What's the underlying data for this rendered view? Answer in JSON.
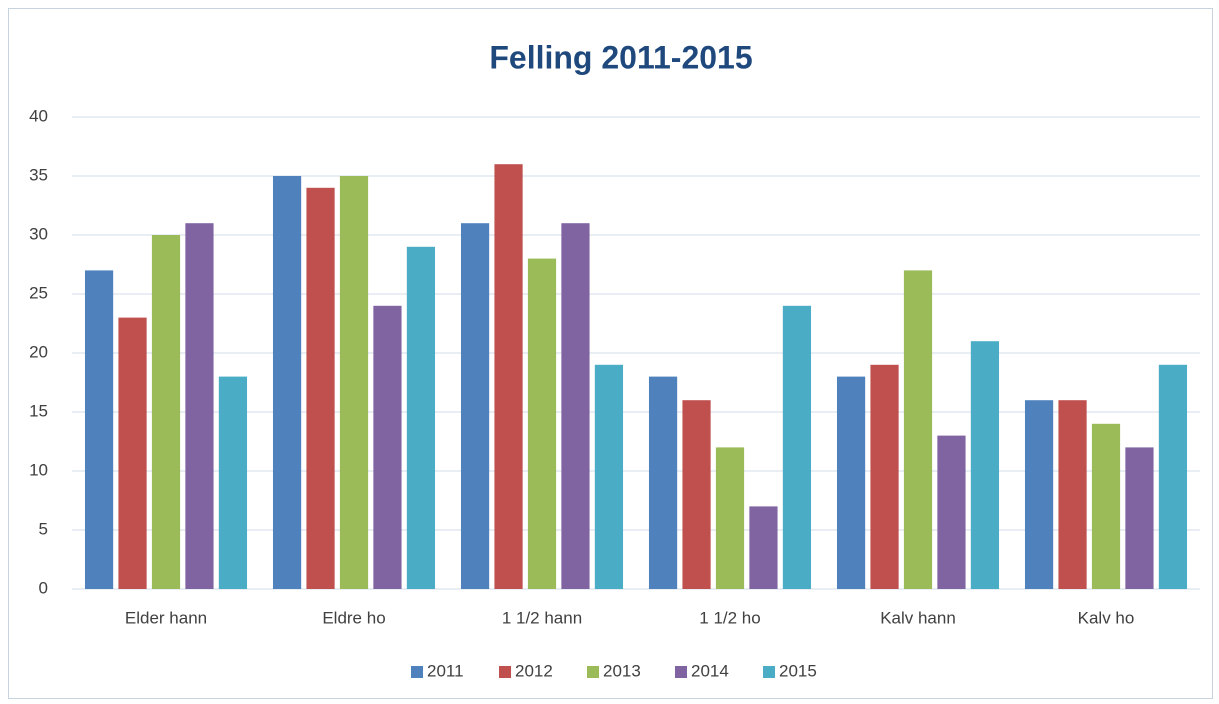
{
  "chart_data": {
    "type": "bar",
    "title": "Felling 2011-2015",
    "categories": [
      "Elder hann",
      "Eldre ho",
      "1 1/2 hann",
      "1 1/2 ho",
      "Kalv hann",
      "Kalv ho"
    ],
    "series": [
      {
        "name": "2011",
        "color": "#4f81bd",
        "values": [
          27,
          35,
          31,
          18,
          18,
          16
        ]
      },
      {
        "name": "2012",
        "color": "#c0504d",
        "values": [
          23,
          34,
          36,
          16,
          19,
          16
        ]
      },
      {
        "name": "2013",
        "color": "#9bbb59",
        "values": [
          30,
          35,
          28,
          12,
          27,
          14
        ]
      },
      {
        "name": "2014",
        "color": "#8064a2",
        "values": [
          31,
          24,
          31,
          7,
          13,
          12
        ]
      },
      {
        "name": "2015",
        "color": "#4bacc6",
        "values": [
          18,
          29,
          19,
          24,
          21,
          19
        ]
      }
    ],
    "ylim": [
      0,
      40
    ],
    "yticks": [
      0,
      5,
      10,
      15,
      20,
      25,
      30,
      35,
      40
    ],
    "grid": true,
    "legend": "bottom"
  }
}
